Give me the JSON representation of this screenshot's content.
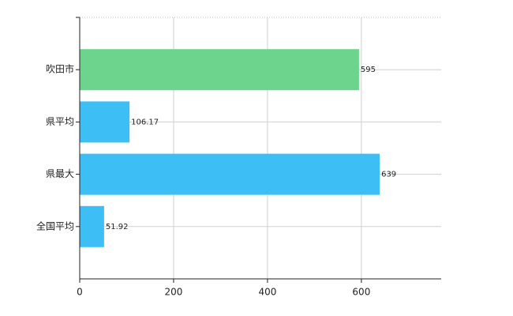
{
  "chart_data": {
    "type": "barh",
    "categories": [
      "吹田市",
      "県平均",
      "県最大",
      "全国平均"
    ],
    "values": [
      595,
      106.17,
      639,
      51.92
    ],
    "colors": [
      "#6dd48e",
      "#3dbff5",
      "#3dbff5",
      "#3dbff5"
    ],
    "xlim": [
      0,
      770
    ],
    "xticks": [
      0,
      200,
      400,
      600
    ],
    "grid": true
  }
}
